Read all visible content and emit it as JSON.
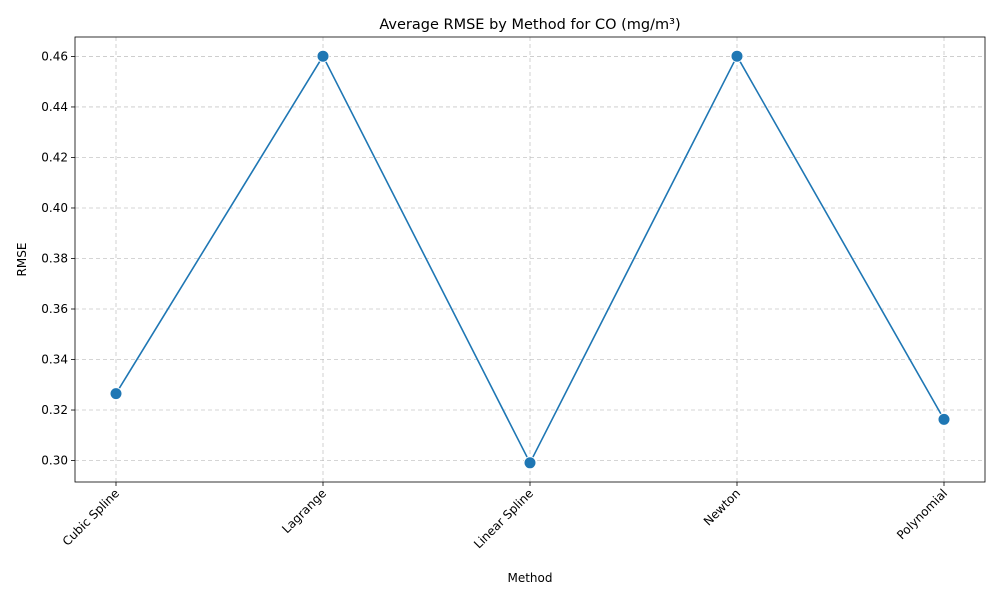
{
  "chart_data": {
    "type": "line",
    "title": "Average RMSE by Method for CO (mg/m³)",
    "xlabel": "Method",
    "ylabel": "RMSE",
    "categories": [
      "Cubic Spline",
      "Lagrange",
      "Linear Spline",
      "Newton",
      "Polynomial"
    ],
    "series": [
      {
        "values": [
          0.3265,
          0.4601,
          0.2991,
          0.4601,
          0.3163
        ]
      }
    ],
    "ylim": [
      0.2915,
      0.4677
    ],
    "yticks": [
      "0.30",
      "0.32",
      "0.34",
      "0.36",
      "0.38",
      "0.40",
      "0.42",
      "0.44",
      "0.46"
    ],
    "grid": true,
    "markers": true,
    "line_color": "#1f77b4",
    "x_tick_rotation": 45
  }
}
